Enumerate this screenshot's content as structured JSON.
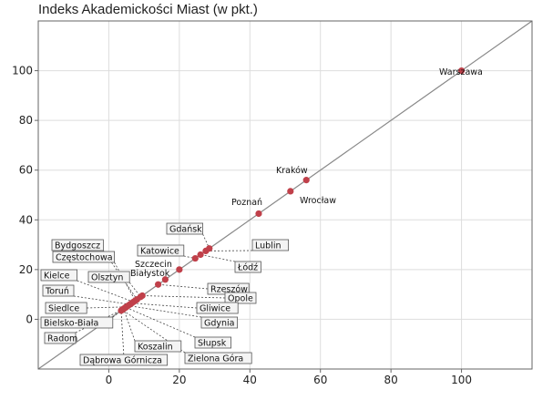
{
  "chart_data": {
    "type": "scatter",
    "title": "Indeks Akademickości Miast (w pkt.)",
    "xlabel": "",
    "ylabel": "",
    "xlim": [
      -20,
      120
    ],
    "ylim": [
      -20,
      120
    ],
    "x_ticks": [
      0,
      20,
      40,
      60,
      80,
      100
    ],
    "y_ticks": [
      0,
      20,
      40,
      60,
      80,
      100
    ],
    "grid": true,
    "diagonal_line": "y = x",
    "colors": {
      "point": "#c0404a",
      "line": "#888888",
      "grid": "#dddddd",
      "box_border": "#555555",
      "box_fill": "#f4f4f4"
    },
    "points": [
      {
        "label": "Warszawa",
        "x": 100,
        "y": 100,
        "boxed": false
      },
      {
        "label": "Kraków",
        "x": 56,
        "y": 56,
        "boxed": false
      },
      {
        "label": "Wrocław",
        "x": 51.5,
        "y": 51.5,
        "boxed": false
      },
      {
        "label": "Poznań",
        "x": 42.5,
        "y": 42.5,
        "boxed": false
      },
      {
        "label": "Gdańsk",
        "x": 28.5,
        "y": 28.5,
        "boxed": true
      },
      {
        "label": "Lublin",
        "x": 27.5,
        "y": 27.5,
        "boxed": true
      },
      {
        "label": "Łódź",
        "x": 26,
        "y": 26,
        "boxed": true
      },
      {
        "label": "Katowice",
        "x": 24.5,
        "y": 24.5,
        "boxed": true
      },
      {
        "label": "Szczecin",
        "x": 20,
        "y": 20,
        "boxed": false
      },
      {
        "label": "Białystok",
        "x": 16,
        "y": 16,
        "boxed": false
      },
      {
        "label": "Rzeszów",
        "x": 14,
        "y": 14,
        "boxed": true
      },
      {
        "label": "Opole",
        "x": 9.5,
        "y": 9.5,
        "boxed": true
      },
      {
        "label": "Olsztyn",
        "x": 9,
        "y": 9,
        "boxed": true
      },
      {
        "label": "Bydgoszcz",
        "x": 8,
        "y": 8,
        "boxed": true
      },
      {
        "label": "Częstochowa",
        "x": 7.5,
        "y": 7.5,
        "boxed": true
      },
      {
        "label": "Kielce",
        "x": 7,
        "y": 7,
        "boxed": true
      },
      {
        "label": "Gliwice",
        "x": 6.5,
        "y": 6.5,
        "boxed": true
      },
      {
        "label": "Toruń",
        "x": 6,
        "y": 6,
        "boxed": true
      },
      {
        "label": "Gdynia",
        "x": 5.5,
        "y": 5.5,
        "boxed": true
      },
      {
        "label": "Siedlce",
        "x": 5,
        "y": 5,
        "boxed": true
      },
      {
        "label": "Słupsk",
        "x": 4.8,
        "y": 4.8,
        "boxed": true
      },
      {
        "label": "Bielsko-Biała",
        "x": 4.5,
        "y": 4.5,
        "boxed": true
      },
      {
        "label": "Koszalin",
        "x": 4.2,
        "y": 4.2,
        "boxed": true
      },
      {
        "label": "Radom",
        "x": 4,
        "y": 4,
        "boxed": true
      },
      {
        "label": "Zielona Góra",
        "x": 3.8,
        "y": 3.8,
        "boxed": true
      },
      {
        "label": "Dąbrowa Górnicza",
        "x": 3.5,
        "y": 3.5,
        "boxed": true
      }
    ]
  }
}
